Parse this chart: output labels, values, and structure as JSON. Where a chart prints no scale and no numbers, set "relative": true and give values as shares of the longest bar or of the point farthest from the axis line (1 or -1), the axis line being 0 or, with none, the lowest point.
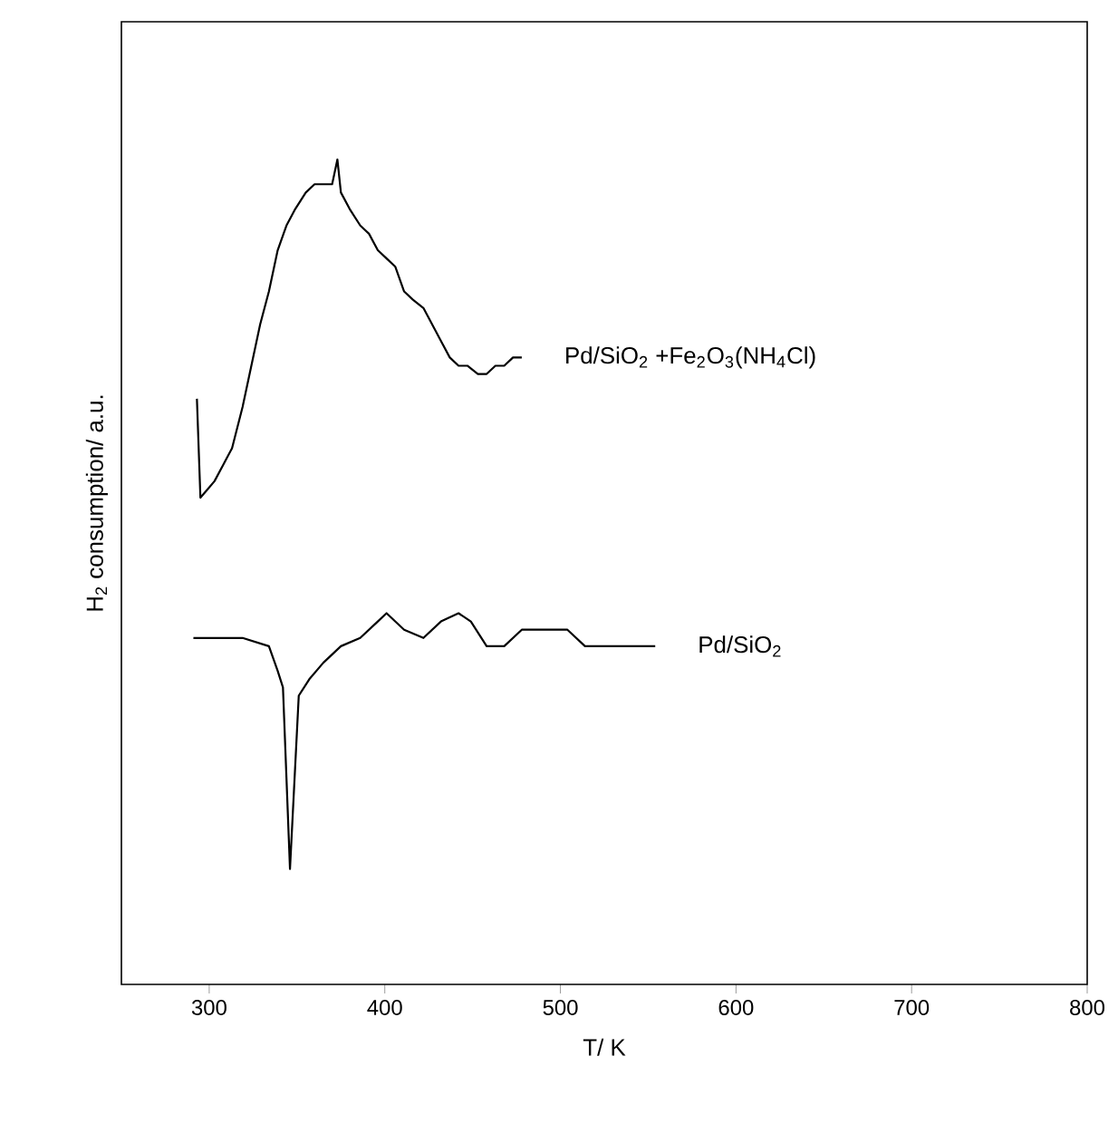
{
  "chart_data": {
    "type": "line",
    "relative": true,
    "xlabel": "T/ K",
    "ylabel": "H$_{2}$ consumption/ a.u.",
    "xlim": [
      250,
      800
    ],
    "xticks": [
      300,
      400,
      500,
      600,
      700,
      800
    ],
    "marker": "none",
    "line_style": "solid",
    "grid": false,
    "legend": false,
    "series": [
      {
        "name": "Pd/SiO$_{2}$ +Fe$_{2}$O$_{3}$(NH$_{4}$Cl)",
        "color": "#000000",
        "x": [
          293,
          295,
          299,
          303,
          308,
          313,
          319,
          324,
          329,
          334,
          339,
          344,
          349,
          355,
          360,
          365,
          370,
          373,
          375,
          380,
          386,
          391,
          396,
          401,
          406,
          411,
          416,
          422,
          427,
          432,
          437,
          442,
          447,
          453,
          458,
          463,
          468,
          473,
          478
        ],
        "values": [
          0.71,
          0.59,
          0.6,
          0.61,
          0.63,
          0.65,
          0.7,
          0.75,
          0.8,
          0.84,
          0.89,
          0.92,
          0.94,
          0.96,
          0.97,
          0.97,
          0.97,
          1.0,
          0.96,
          0.94,
          0.92,
          0.91,
          0.89,
          0.88,
          0.87,
          0.84,
          0.83,
          0.82,
          0.8,
          0.78,
          0.76,
          0.75,
          0.75,
          0.74,
          0.74,
          0.75,
          0.75,
          0.76,
          0.76
        ]
      },
      {
        "name": "Pd/SiO$_{2}$",
        "color": "#000000",
        "x": [
          291,
          303,
          319,
          334,
          339,
          342,
          346,
          351,
          357,
          365,
          375,
          386,
          396,
          401,
          411,
          422,
          432,
          442,
          449,
          458,
          468,
          478,
          489,
          504,
          514,
          525,
          535,
          545,
          554
        ],
        "values": [
          0.42,
          0.42,
          0.42,
          0.41,
          0.38,
          0.36,
          0.14,
          0.35,
          0.37,
          0.39,
          0.41,
          0.42,
          0.44,
          0.45,
          0.43,
          0.42,
          0.44,
          0.45,
          0.44,
          0.41,
          0.41,
          0.43,
          0.43,
          0.43,
          0.41,
          0.41,
          0.41,
          0.41,
          0.41
        ]
      }
    ]
  }
}
